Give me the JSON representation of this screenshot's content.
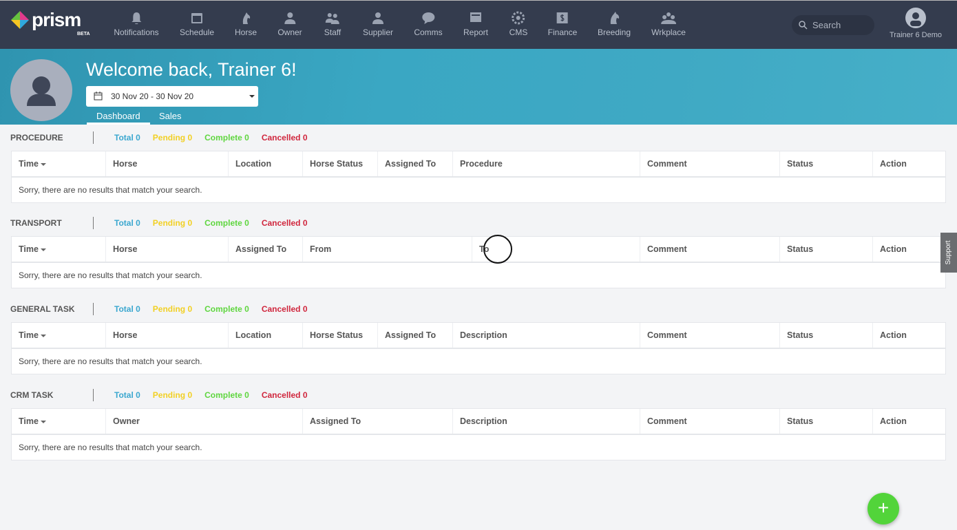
{
  "brand": {
    "name": "prism",
    "badge": "BETA"
  },
  "nav": [
    {
      "label": "Notifications",
      "icon": "bell-icon"
    },
    {
      "label": "Schedule",
      "icon": "calendar-icon"
    },
    {
      "label": "Horse",
      "icon": "horse-icon"
    },
    {
      "label": "Owner",
      "icon": "person-icon"
    },
    {
      "label": "Staff",
      "icon": "people-icon"
    },
    {
      "label": "Supplier",
      "icon": "supplier-icon"
    },
    {
      "label": "Comms",
      "icon": "chat-icon"
    },
    {
      "label": "Report",
      "icon": "report-icon"
    },
    {
      "label": "CMS",
      "icon": "gear-icon"
    },
    {
      "label": "Finance",
      "icon": "dollar-icon"
    },
    {
      "label": "Breeding",
      "icon": "horse-head-icon"
    },
    {
      "label": "Wrkplace",
      "icon": "group-icon"
    }
  ],
  "search": {
    "placeholder": "Search"
  },
  "user": {
    "name": "Trainer 6 Demo"
  },
  "banner": {
    "welcome": "Welcome back, Trainer 6!",
    "date_range": "30 Nov 20 - 30 Nov 20",
    "tabs": [
      "Dashboard",
      "Sales"
    ],
    "active_tab": "Dashboard"
  },
  "colors": {
    "total": "#3aa7cf",
    "pending": "#f2d024",
    "complete": "#5fd63f",
    "cancelled": "#d0263d"
  },
  "sections": [
    {
      "title": "PROCEDURE",
      "stats": {
        "total": "Total 0",
        "pending": "Pending 0",
        "complete": "Complete 0",
        "cancelled": "Cancelled 0"
      },
      "columns": [
        "Time",
        "Horse",
        "Location",
        "Horse Status",
        "Assigned To",
        "Procedure",
        "Comment",
        "Status",
        "Action"
      ],
      "empty": "Sorry, there are no results that match your search."
    },
    {
      "title": "TRANSPORT",
      "stats": {
        "total": "Total 0",
        "pending": "Pending 0",
        "complete": "Complete 0",
        "cancelled": "Cancelled 0"
      },
      "columns": [
        "Time",
        "Horse",
        "Assigned To",
        "From",
        "To",
        "Comment",
        "Status",
        "Action"
      ],
      "empty": "Sorry, there are no results that match your search."
    },
    {
      "title": "GENERAL TASK",
      "stats": {
        "total": "Total 0",
        "pending": "Pending 0",
        "complete": "Complete 0",
        "cancelled": "Cancelled 0"
      },
      "columns": [
        "Time",
        "Horse",
        "Location",
        "Horse Status",
        "Assigned To",
        "Description",
        "Comment",
        "Status",
        "Action"
      ],
      "empty": "Sorry, there are no results that match your search."
    },
    {
      "title": "CRM TASK",
      "stats": {
        "total": "Total 0",
        "pending": "Pending 0",
        "complete": "Complete 0",
        "cancelled": "Cancelled 0"
      },
      "columns": [
        "Time",
        "Owner",
        "Assigned To",
        "Description",
        "Comment",
        "Status",
        "Action"
      ],
      "empty": "Sorry, there are no results that match your search."
    }
  ],
  "support": {
    "label": "Support"
  },
  "fab": {
    "label": "+"
  }
}
